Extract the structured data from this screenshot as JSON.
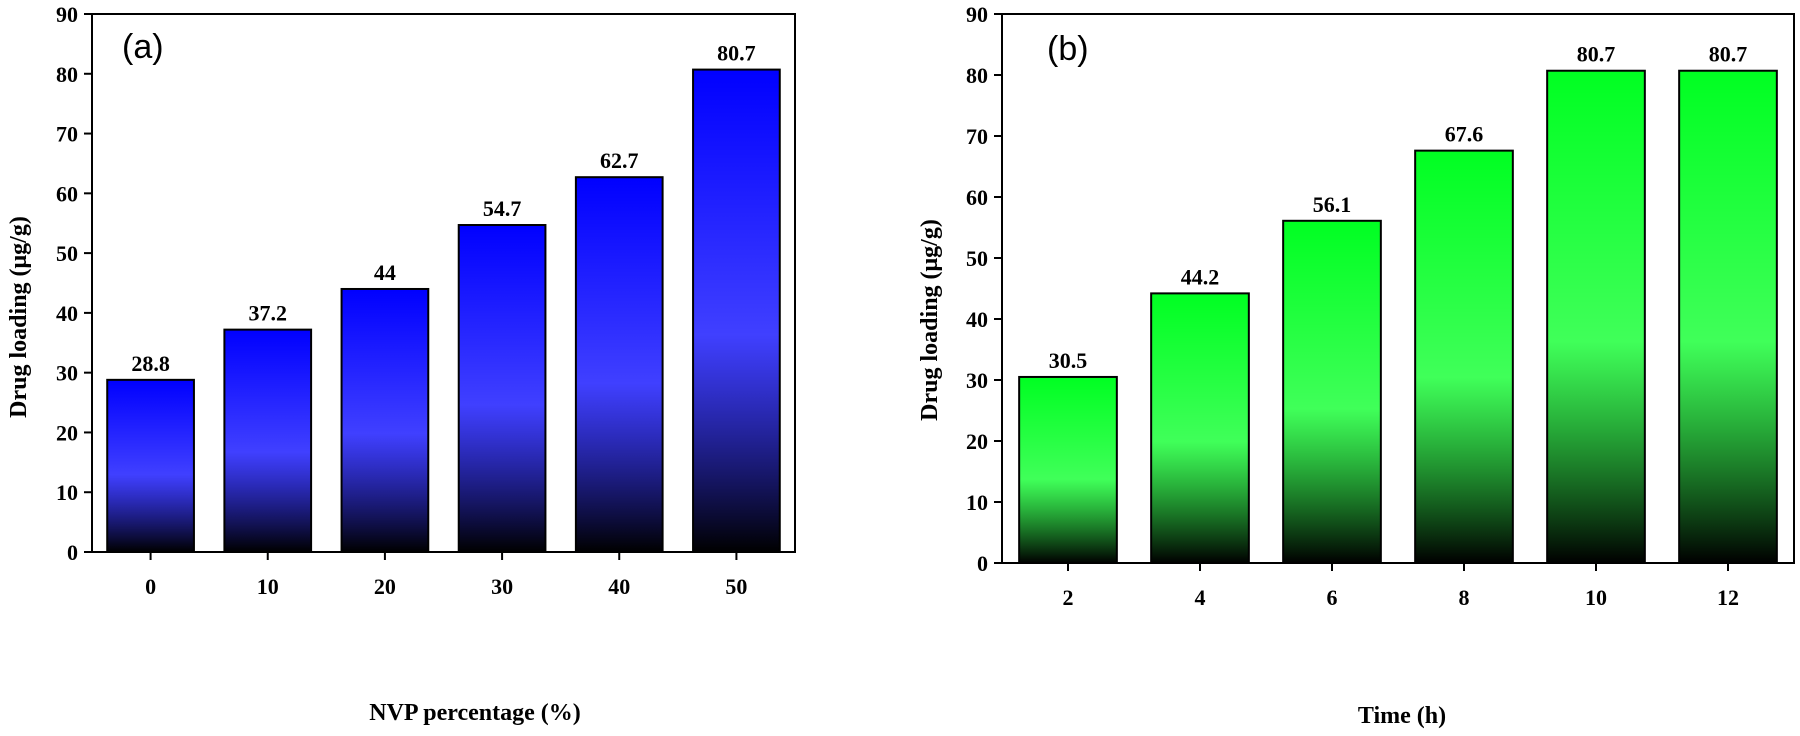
{
  "chart_data": [
    {
      "type": "bar",
      "panel_label": "(a)",
      "categories": [
        "0",
        "10",
        "20",
        "30",
        "40",
        "50"
      ],
      "values": [
        28.8,
        37.2,
        44,
        54.7,
        62.7,
        80.7
      ],
      "data_labels": [
        "28.8",
        "37.2",
        "44",
        "54.7",
        "62.7",
        "80.7"
      ],
      "xlabel": "NVP percentage (%)",
      "ylabel": "Drug loading (μg/g)",
      "ylim": [
        0,
        90
      ],
      "yticks": [
        "0",
        "10",
        "20",
        "30",
        "40",
        "50",
        "60",
        "70",
        "80",
        "90"
      ],
      "bar_color": "#0000ff",
      "bar_color_dark": "#000000",
      "grid": false
    },
    {
      "type": "bar",
      "panel_label": "(b)",
      "categories": [
        "2",
        "4",
        "6",
        "8",
        "10",
        "12"
      ],
      "values": [
        30.5,
        44.2,
        56.1,
        67.6,
        80.7,
        80.7
      ],
      "data_labels": [
        "30.5",
        "44.2",
        "56.1",
        "67.6",
        "80.7",
        "80.7"
      ],
      "xlabel": "Time (h)",
      "ylabel": "Drug loading (μg/g)",
      "ylim": [
        0,
        90
      ],
      "yticks": [
        "0",
        "10",
        "20",
        "30",
        "40",
        "50",
        "60",
        "70",
        "80",
        "90"
      ],
      "bar_color": "#00ff22",
      "bar_color_dark": "#000000",
      "grid": false
    }
  ]
}
